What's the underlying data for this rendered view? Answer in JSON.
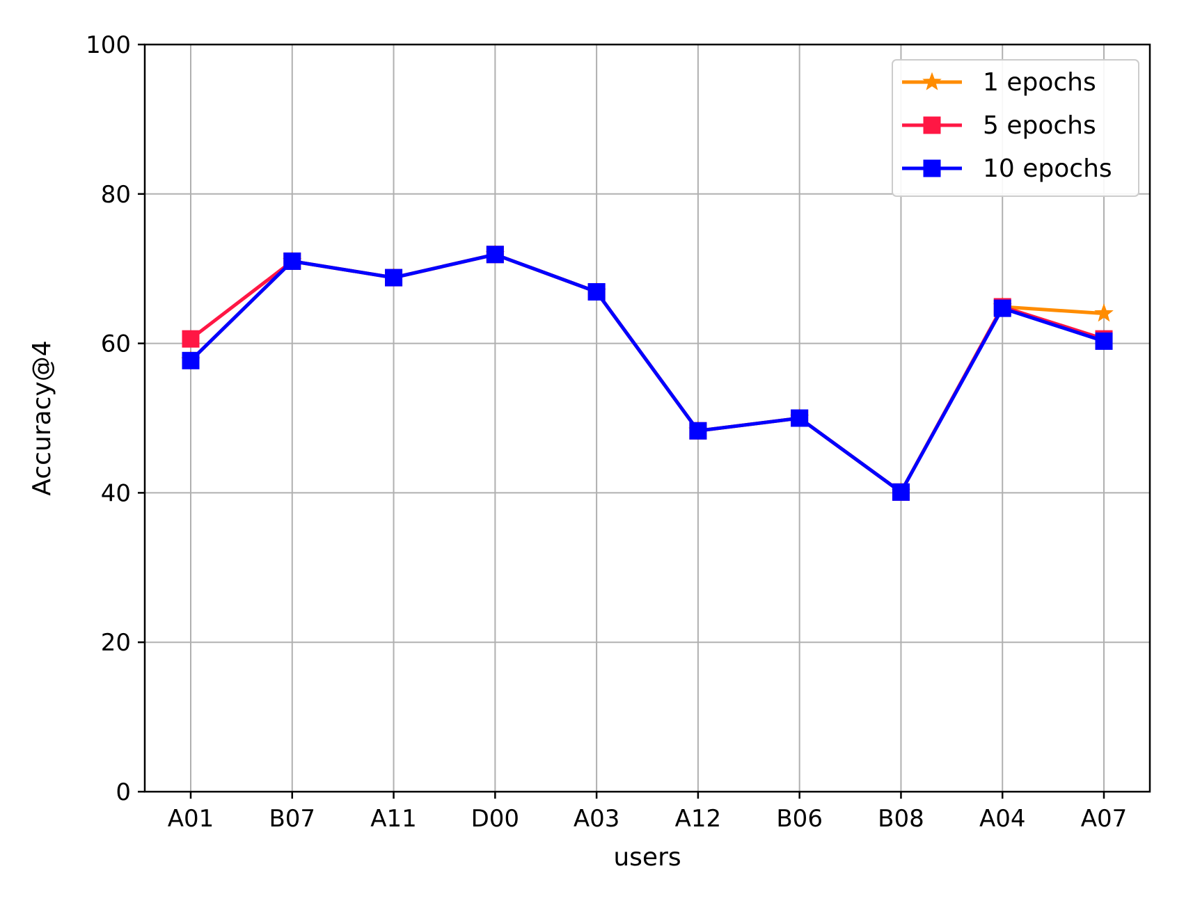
{
  "chart_data": {
    "type": "line",
    "title": "",
    "xlabel": "users",
    "ylabel": "Accuracy@4",
    "categories": [
      "A01",
      "B07",
      "A11",
      "D00",
      "A03",
      "A12",
      "B06",
      "B08",
      "A04",
      "A07"
    ],
    "ylim": [
      0,
      100
    ],
    "yticks": [
      0,
      20,
      40,
      60,
      80,
      100
    ],
    "grid": true,
    "legend_position": "top-right",
    "series": [
      {
        "name": "1 epochs",
        "color": "#ff8c00",
        "marker": "star",
        "values": [
          57.7,
          71.0,
          68.8,
          71.9,
          66.9,
          48.3,
          50.0,
          40.1,
          64.9,
          64.0
        ]
      },
      {
        "name": "5 epochs",
        "color": "#ff1744",
        "marker": "square",
        "values": [
          60.6,
          71.0,
          68.8,
          71.9,
          66.9,
          48.3,
          50.0,
          40.1,
          64.9,
          60.6
        ]
      },
      {
        "name": "10 epochs",
        "color": "#0000ff",
        "marker": "square",
        "values": [
          57.7,
          71.0,
          68.8,
          71.9,
          66.9,
          48.3,
          50.0,
          40.1,
          64.7,
          60.3
        ]
      }
    ]
  }
}
